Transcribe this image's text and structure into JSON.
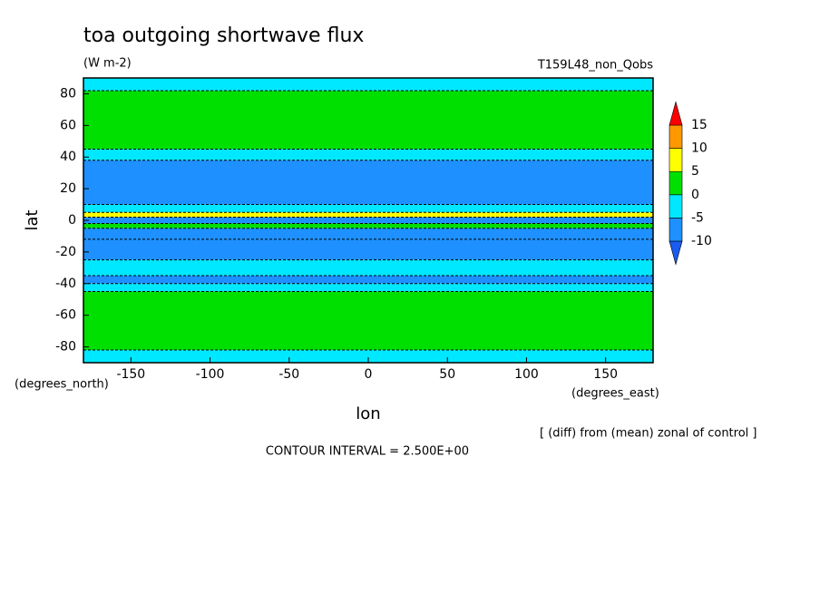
{
  "chart_data": {
    "type": "zonal-contour",
    "title": "toa outgoing shortwave flux",
    "subtitle": "(W m-2)",
    "run_label": "T159L48_non_Qobs",
    "x_label": "lon",
    "y_label": "lat",
    "x_units": "(degrees_east)",
    "y_units": "(degrees_north)",
    "note": "[ (diff) from (mean) zonal of control ]",
    "contour_interval": "CONTOUR INTERVAL = 2.500E+00",
    "xlim": [
      -180,
      180
    ],
    "xticks": [
      -150,
      -100,
      -50,
      0,
      50,
      100,
      150
    ],
    "ylim": [
      -90,
      90
    ],
    "yticks": [
      -80,
      -60,
      -40,
      -20,
      0,
      20,
      40,
      60,
      80
    ],
    "lat_edges": [
      90,
      82,
      45,
      38,
      10,
      5,
      2,
      -2,
      -5,
      -12,
      -25,
      -35,
      -40,
      -45,
      -82,
      -90
    ],
    "values": [
      -2,
      1,
      -3,
      -6,
      -2,
      6,
      -6,
      4,
      -7,
      -6,
      -4,
      -6,
      -3,
      1,
      -2
    ],
    "levels": [
      -10,
      -5,
      0,
      5,
      10,
      15
    ],
    "level_colors": [
      "#1a5cf0",
      "#1e90ff",
      "#00e8ff",
      "#00e000",
      "#ffff00",
      "#ff9900",
      "#ff0000"
    ]
  }
}
